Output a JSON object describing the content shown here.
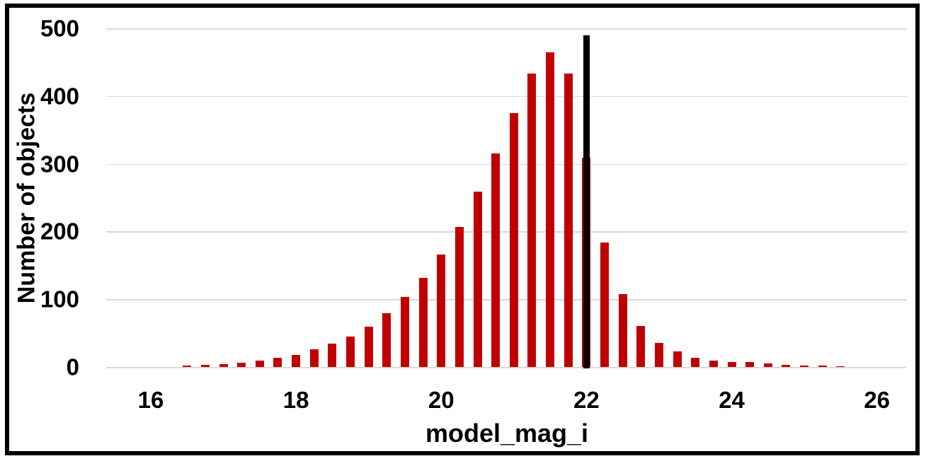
{
  "chart_data": {
    "type": "bar",
    "title": "",
    "xlabel": "model_mag_i",
    "ylabel": "Number of objects",
    "bin_width": 0.25,
    "x": [
      16.5,
      16.75,
      17.0,
      17.25,
      17.5,
      17.75,
      18.0,
      18.25,
      18.5,
      18.75,
      19.0,
      19.25,
      19.5,
      19.75,
      20.0,
      20.25,
      20.5,
      20.75,
      21.0,
      21.25,
      21.5,
      21.75,
      22.0,
      22.25,
      22.5,
      22.75,
      23.0,
      23.25,
      23.5,
      23.75,
      24.0,
      24.25,
      24.5,
      24.75,
      25.0,
      25.25,
      25.5
    ],
    "values": [
      2,
      3,
      4,
      6,
      9,
      14,
      18,
      26,
      34,
      45,
      60,
      79,
      103,
      132,
      166,
      207,
      259,
      315,
      375,
      433,
      464,
      433,
      309,
      184,
      107,
      61,
      36,
      23,
      14,
      9,
      7,
      7,
      5,
      3,
      2,
      2,
      1
    ],
    "xticks": [
      16,
      18,
      20,
      22,
      24,
      26
    ],
    "yticks": [
      0,
      100,
      200,
      300,
      400,
      500
    ],
    "xlim": [
      15.4,
      26.4
    ],
    "ylim": [
      0,
      500
    ],
    "grid": "horizontal",
    "legend": "none",
    "bar_color": "#C00000",
    "gridline_color": "#D9D9D9",
    "frame_border_color": "#000000",
    "text_color": "#000000",
    "marker_line": {
      "x": 22,
      "y_top": 490,
      "color": "#000000"
    }
  }
}
